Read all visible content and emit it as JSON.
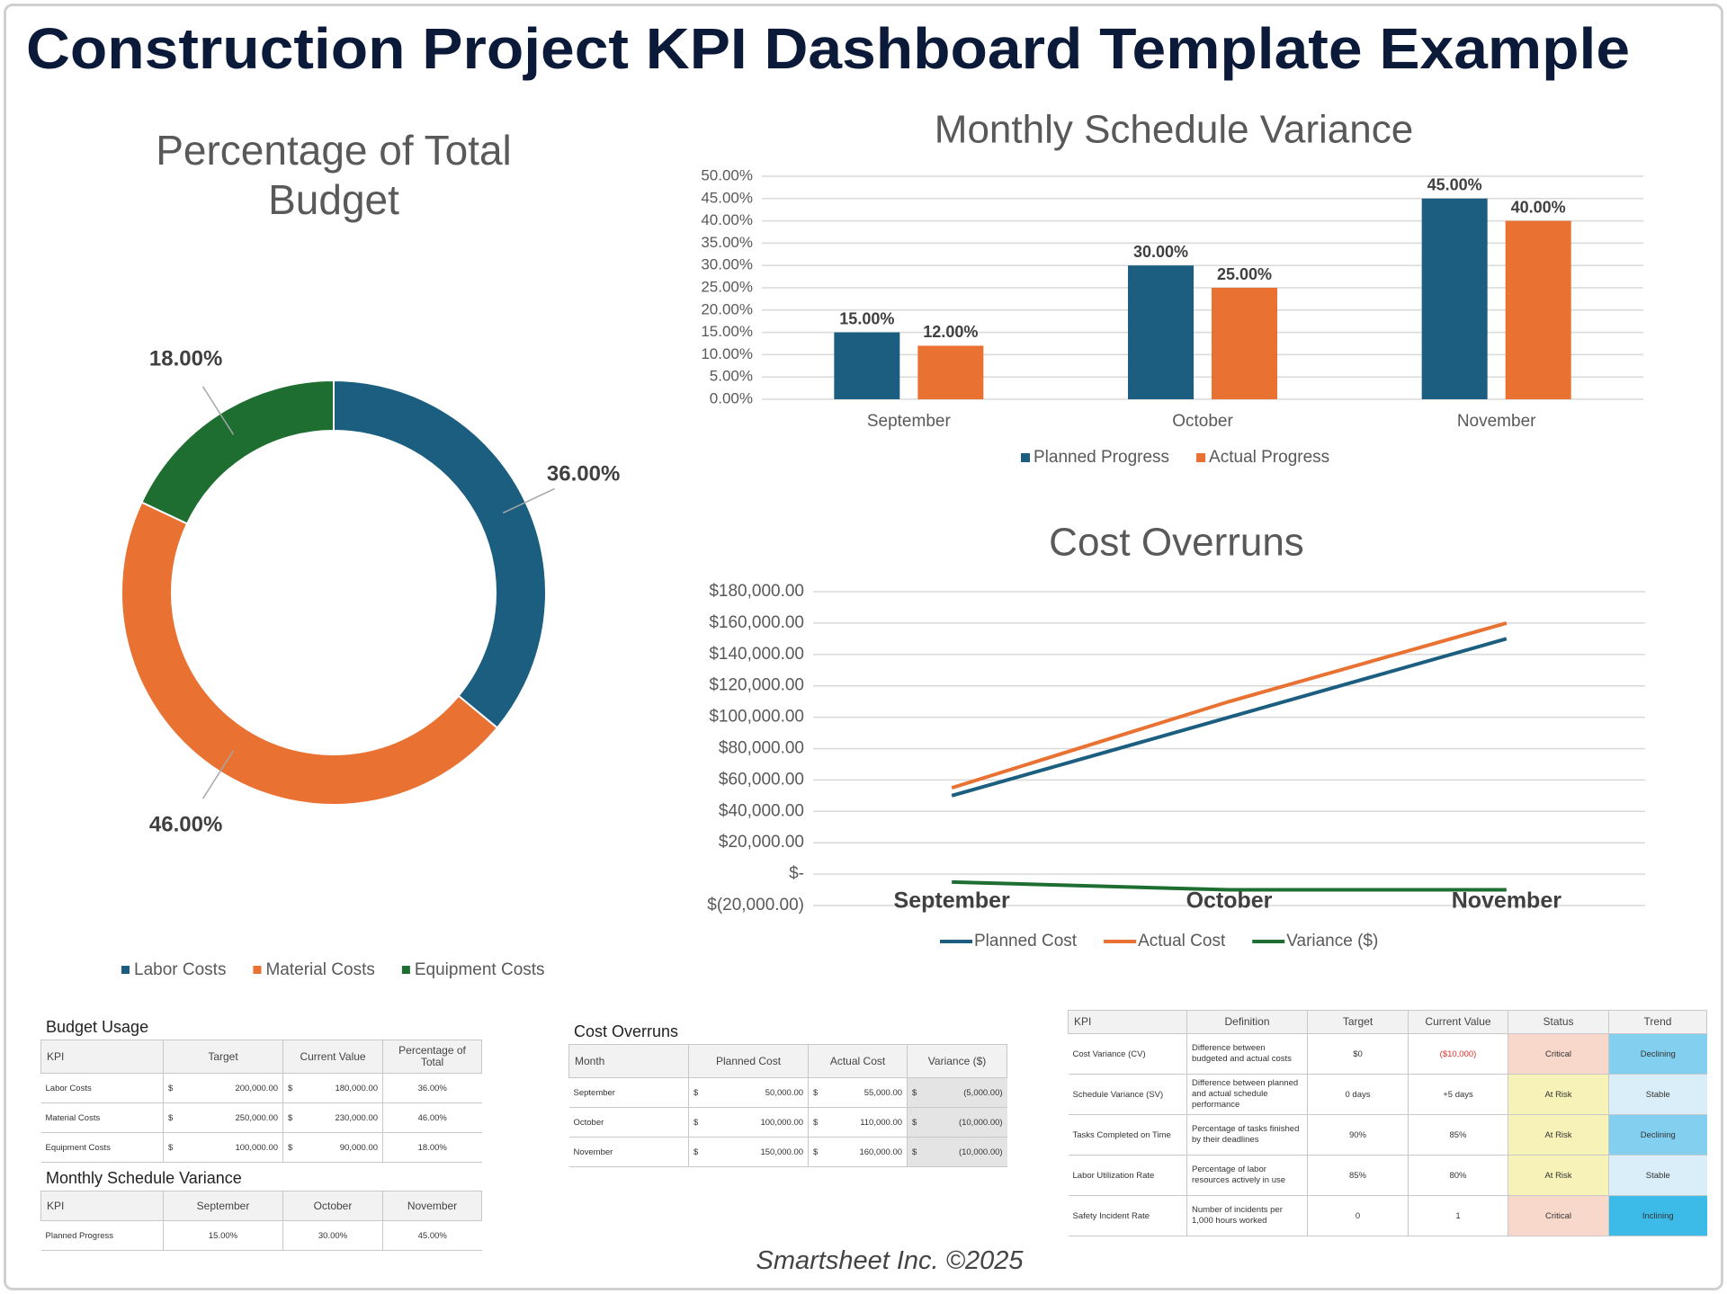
{
  "title": "Construction Project KPI Dashboard Template Example",
  "footer": "Smartsheet Inc. ©2025",
  "chart_data": [
    {
      "type": "pie",
      "donut": true,
      "title": "Percentage of Total Budget",
      "categories": [
        "Labor Costs",
        "Material Costs",
        "Equipment Costs"
      ],
      "values": [
        36,
        46,
        18
      ],
      "value_labels": [
        "36.00%",
        "46.00%",
        "18.00%"
      ],
      "colors": [
        "#1b5e80",
        "#e97132",
        "#1e6e32"
      ],
      "legend": "bottom"
    },
    {
      "type": "bar",
      "title": "Monthly Schedule Variance",
      "categories": [
        "September",
        "October",
        "November"
      ],
      "series": [
        {
          "name": "Planned Progress",
          "color": "#1b5e80",
          "values": [
            15,
            30,
            45
          ],
          "value_labels": [
            "15.00%",
            "30.00%",
            "45.00%"
          ]
        },
        {
          "name": "Actual Progress",
          "color": "#e97132",
          "values": [
            12,
            25,
            40
          ],
          "value_labels": [
            "12.00%",
            "25.00%",
            "40.00%"
          ]
        }
      ],
      "ylim": [
        0,
        50
      ],
      "yticks": [
        {
          "value": 0,
          "label": "0.00%"
        },
        {
          "value": 5,
          "label": "5.00%"
        },
        {
          "value": 10,
          "label": "10.00%"
        },
        {
          "value": 15,
          "label": "15.00%"
        },
        {
          "value": 20,
          "label": "20.00%"
        },
        {
          "value": 25,
          "label": "25.00%"
        },
        {
          "value": 30,
          "label": "30.00%"
        },
        {
          "value": 35,
          "label": "35.00%"
        },
        {
          "value": 40,
          "label": "40.00%"
        },
        {
          "value": 45,
          "label": "45.00%"
        },
        {
          "value": 50,
          "label": "50.00%"
        }
      ],
      "grid": true,
      "legend": "bottom"
    },
    {
      "type": "line",
      "title": "Cost Overruns",
      "categories": [
        "September",
        "October",
        "November"
      ],
      "series": [
        {
          "name": "Planned Cost",
          "color": "#1b5e80",
          "values": [
            50000,
            100000,
            150000
          ]
        },
        {
          "name": "Actual Cost",
          "color": "#e97132",
          "values": [
            55000,
            110000,
            160000
          ]
        },
        {
          "name": "Variance ($)",
          "color": "#1e6e32",
          "values": [
            -5000,
            -10000,
            -10000
          ]
        }
      ],
      "ylim": [
        -20000,
        180000
      ],
      "yticks": [
        {
          "value": -20000,
          "label": "$(20,000.00)"
        },
        {
          "value": 0,
          "label": "$-"
        },
        {
          "value": 20000,
          "label": "$20,000.00"
        },
        {
          "value": 40000,
          "label": "$40,000.00"
        },
        {
          "value": 60000,
          "label": "$60,000.00"
        },
        {
          "value": 80000,
          "label": "$80,000.00"
        },
        {
          "value": 100000,
          "label": "$100,000.00"
        },
        {
          "value": 120000,
          "label": "$120,000.00"
        },
        {
          "value": 140000,
          "label": "$140,000.00"
        },
        {
          "value": 160000,
          "label": "$160,000.00"
        },
        {
          "value": 180000,
          "label": "$180,000.00"
        }
      ],
      "grid": true,
      "legend": "bottom"
    }
  ],
  "tables": {
    "budget_usage": {
      "title": "Budget Usage",
      "header": [
        "KPI",
        "Target",
        "Current Value",
        "Percentage of Total"
      ],
      "rows": [
        [
          "Labor Costs",
          "$",
          "200,000.00",
          "$",
          "180,000.00",
          "36.00%"
        ],
        [
          "Material Costs",
          "$",
          "250,000.00",
          "$",
          "230,000.00",
          "46.00%"
        ],
        [
          "Equipment Costs",
          "$",
          "100,000.00",
          "$",
          "90,000.00",
          "18.00%"
        ]
      ]
    },
    "monthly_schedule_variance": {
      "title": "Monthly Schedule Variance",
      "header": [
        "KPI",
        "September",
        "October",
        "November"
      ],
      "rows": [
        [
          "Planned Progress",
          "15.00%",
          "30.00%",
          "45.00%"
        ]
      ]
    },
    "cost_overruns": {
      "title": "Cost Overruns",
      "header": [
        "Month",
        "Planned Cost",
        "Actual Cost",
        "Variance ($)"
      ],
      "rows": [
        [
          "September",
          "$",
          "50,000.00",
          "$",
          "55,000.00",
          "$",
          "(5,000.00)"
        ],
        [
          "October",
          "$",
          "100,000.00",
          "$",
          "110,000.00",
          "$",
          "(10,000.00)"
        ],
        [
          "November",
          "$",
          "150,000.00",
          "$",
          "160,000.00",
          "$",
          "(10,000.00)"
        ]
      ]
    },
    "kpi": {
      "header": [
        "KPI",
        "Definition",
        "Target",
        "Current Value",
        "Status",
        "Trend"
      ],
      "rows": [
        [
          "Cost Variance (CV)",
          "Difference between budgeted and actual costs",
          "$0",
          "($10,000)",
          "Critical",
          "Declining"
        ],
        [
          "Schedule Variance (SV)",
          "Difference between planned and actual schedule performance",
          "0 days",
          "+5 days",
          "At Risk",
          "Stable"
        ],
        [
          "Tasks Completed on Time",
          "Percentage of tasks finished by their deadlines",
          "90%",
          "85%",
          "At Risk",
          "Declining"
        ],
        [
          "Labor Utilization Rate",
          "Percentage of labor resources actively in use",
          "85%",
          "80%",
          "At Risk",
          "Stable"
        ],
        [
          "Safety Incident Rate",
          "Number of incidents per 1,000 hours worked",
          "0",
          "1",
          "Critical",
          "Inclining"
        ]
      ],
      "status_colors": [
        "#f9d8cc",
        "#f6f2b8",
        "#f6f2b8",
        "#f6f2b8",
        "#f9d8cc"
      ],
      "trend_colors": [
        "#83cff0",
        "#d9eef8",
        "#83cff0",
        "#d9eef8",
        "#3dbbe8"
      ],
      "current_value_colors": [
        "#e0302a",
        "#333333",
        "#333333",
        "#333333",
        "#333333"
      ]
    }
  }
}
